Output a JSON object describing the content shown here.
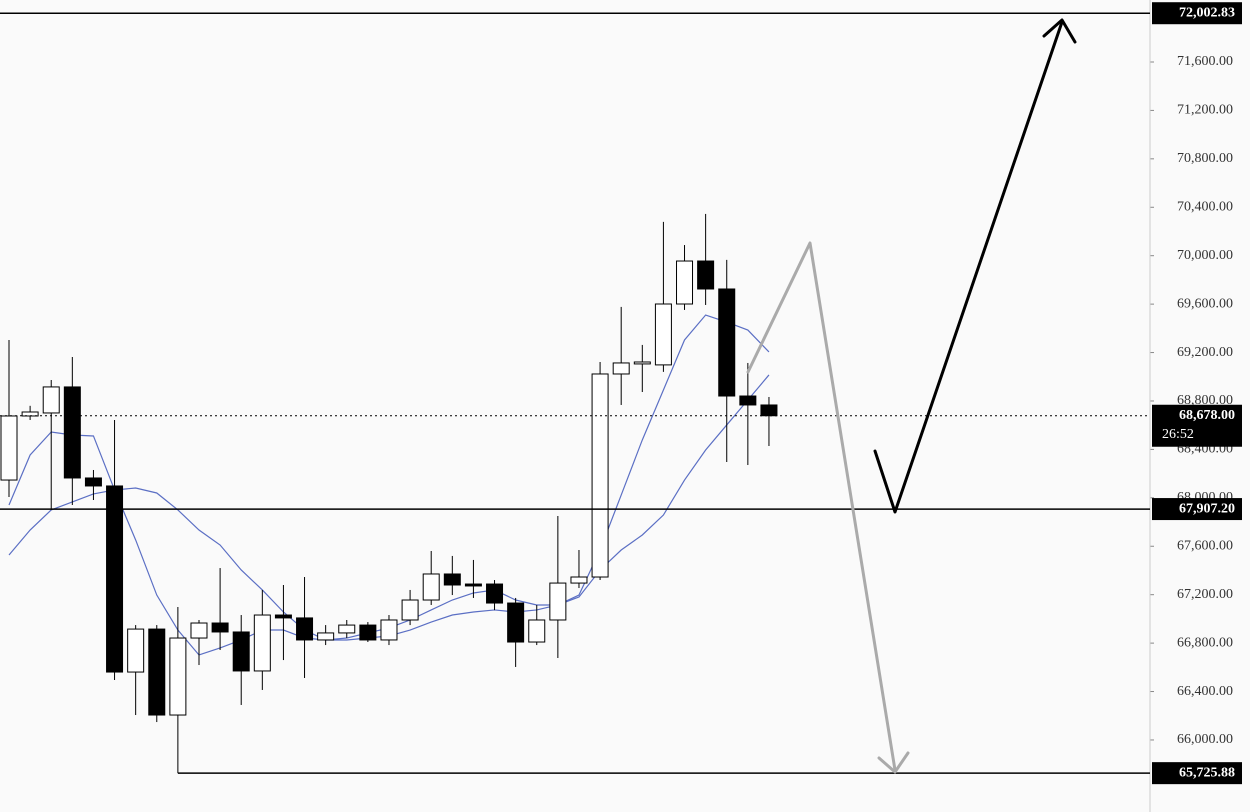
{
  "chart_data": {
    "type": "candlestick",
    "ylim": [
      65405,
      72112
    ],
    "yticks": [
      {
        "value": 66000,
        "label": "66,000.00"
      },
      {
        "value": 66400,
        "label": "66,400.00"
      },
      {
        "value": 66800,
        "label": "66,800.00"
      },
      {
        "value": 67200,
        "label": "67,200.00"
      },
      {
        "value": 67600,
        "label": "67,600.00"
      },
      {
        "value": 68000,
        "label": "68,000.00"
      },
      {
        "value": 68400,
        "label": "68,400.00"
      },
      {
        "value": 68800,
        "label": "68,800.00"
      },
      {
        "value": 69200,
        "label": "69,200.00"
      },
      {
        "value": 69600,
        "label": "69,600.00"
      },
      {
        "value": 70000,
        "label": "70,000.00"
      },
      {
        "value": 70400,
        "label": "70,400.00"
      },
      {
        "value": 70800,
        "label": "70,800.00"
      },
      {
        "value": 71200,
        "label": "71,200.00"
      },
      {
        "value": 71600,
        "label": "71,600.00"
      }
    ],
    "up_color": "#ffffff",
    "down_color": "#000000",
    "open": [
      68147,
      68676,
      68701,
      68916,
      68164,
      68098,
      66561,
      66916,
      66206,
      66842,
      66966,
      66892,
      66570,
      67032,
      67008,
      66826,
      66884,
      66949,
      66826,
      66991,
      67156,
      67371,
      67288,
      67288,
      67131,
      66809,
      66991,
      67296,
      67346,
      69023,
      69106,
      69098,
      69601,
      69956,
      69725,
      68841,
      68767
    ],
    "high": [
      69304,
      68760,
      68973,
      69163,
      68230,
      68643,
      66949,
      66949,
      67098,
      66991,
      67420,
      67032,
      67239,
      67280,
      67346,
      66949,
      66991,
      66974,
      67032,
      67239,
      67561,
      67520,
      67487,
      67321,
      67173,
      67115,
      67850,
      67569,
      69122,
      69577,
      69263,
      70279,
      70088,
      70345,
      69965,
      69114,
      68833
    ],
    "low": [
      68007,
      68643,
      67899,
      67941,
      67982,
      66495,
      66206,
      66148,
      65725.88,
      66619,
      66743,
      66289,
      66413,
      66660,
      66512,
      66784,
      66842,
      66809,
      66784,
      66949,
      67115,
      67197,
      67173,
      67073,
      66603,
      66784,
      66677,
      67255,
      67321,
      68767,
      68874,
      69040,
      69552,
      69593,
      68296,
      68271,
      68428
    ],
    "close": [
      68676,
      68709,
      68916,
      68164,
      68098,
      66561,
      66916,
      66206,
      66842,
      66966,
      66892,
      66570,
      67032,
      67008,
      66826,
      66884,
      66949,
      66826,
      66991,
      67156,
      67371,
      67280,
      67272,
      67131,
      66809,
      66991,
      67296,
      67346,
      69023,
      69114,
      69122,
      69601,
      69956,
      69725,
      68841,
      68767,
      68678
    ],
    "moving_averages": [
      {
        "color": "#5b6fc4",
        "values": [
          67941,
          68354,
          68544,
          68519,
          68511,
          68065,
          67652,
          67197,
          66908,
          66702,
          66760,
          66826,
          66908,
          66908,
          66842,
          66826,
          66842,
          66884,
          66925,
          66991,
          67074,
          67156,
          67214,
          67239,
          67156,
          67115,
          67115,
          67197,
          67569,
          68023,
          68478,
          68891,
          69304,
          69510,
          69452,
          69386,
          69205
        ]
      },
      {
        "color": "#5b6fc4",
        "values": [
          67528,
          67734,
          67900,
          67966,
          68032,
          68065,
          68081,
          68040,
          67900,
          67734,
          67610,
          67404,
          67239,
          67057,
          66908,
          66826,
          66826,
          66842,
          66859,
          66908,
          66974,
          67032,
          67057,
          67074,
          67057,
          67074,
          67115,
          67181,
          67404,
          67569,
          67693,
          67858,
          68147,
          68395,
          68602,
          68808,
          69015
        ]
      }
    ],
    "levels": [
      {
        "value": 72002.83,
        "label": "72,002.83"
      },
      {
        "value": 67907.2,
        "label": "67,907.20"
      },
      {
        "value": 65725.88,
        "label": "65,725.88"
      }
    ],
    "current_price": {
      "value": 68678,
      "label": "68,678.00",
      "countdown": "26:52"
    }
  }
}
